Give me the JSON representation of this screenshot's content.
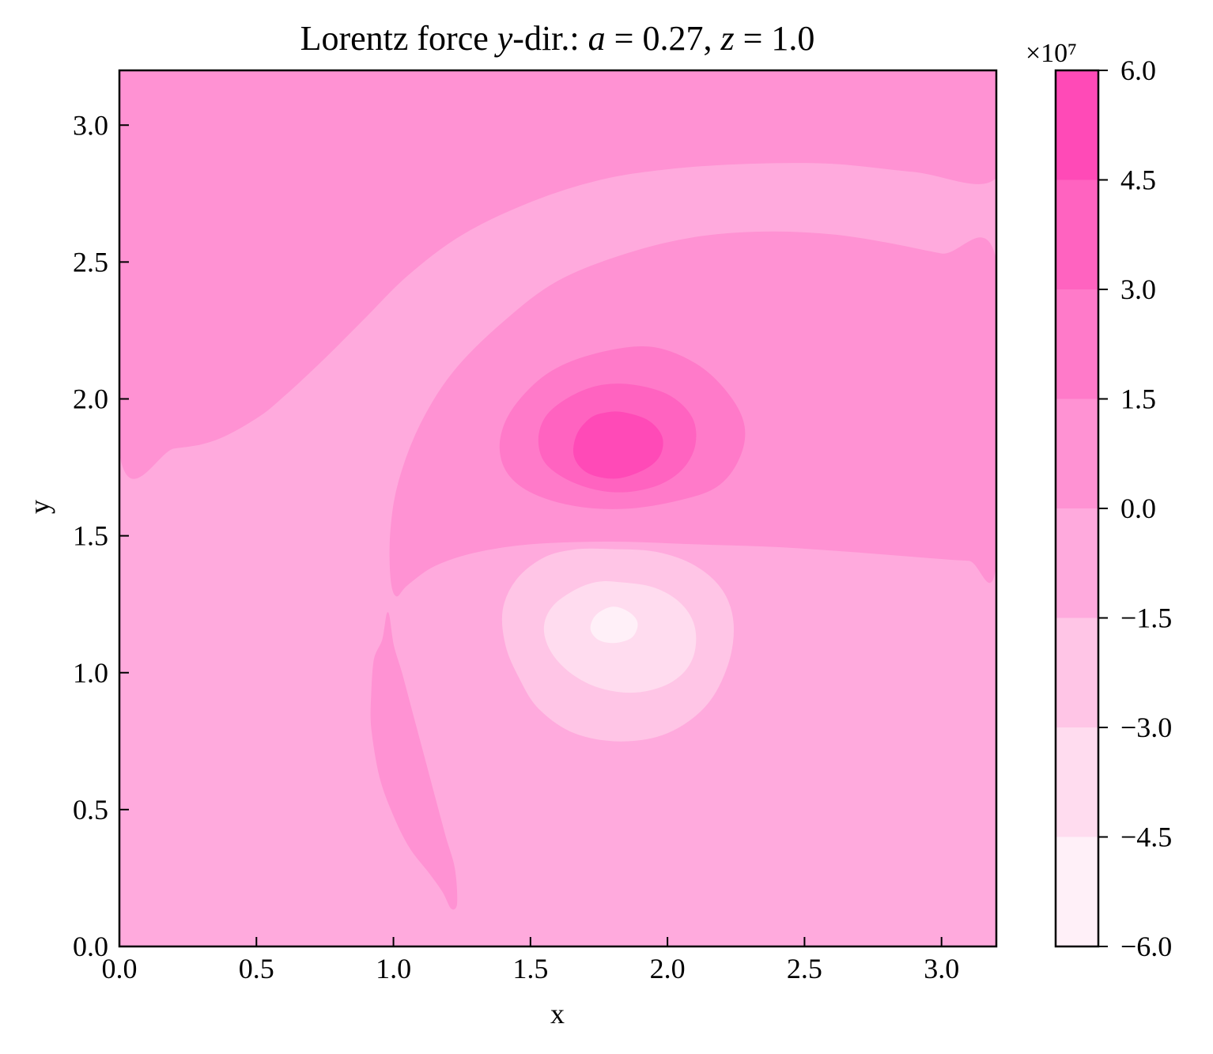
{
  "chart_data": {
    "type": "heatmap",
    "subtype": "filled-contour",
    "title_parts": [
      {
        "text": "Lorentz force ",
        "italic": false
      },
      {
        "text": "y",
        "italic": true
      },
      {
        "text": "-dir.: ",
        "italic": false
      },
      {
        "text": "a",
        "italic": true
      },
      {
        "text": " = 0.27, ",
        "italic": false
      },
      {
        "text": "z",
        "italic": true
      },
      {
        "text": " = 1.0",
        "italic": false
      }
    ],
    "xlabel": "x",
    "ylabel": "y",
    "xlim": [
      0.0,
      3.2
    ],
    "ylim": [
      0.0,
      3.2
    ],
    "xticks": [
      0.0,
      0.5,
      1.0,
      1.5,
      2.0,
      2.5,
      3.0
    ],
    "xtick_labels": [
      "0.0",
      "0.5",
      "1.0",
      "1.5",
      "2.0",
      "2.5",
      "3.0"
    ],
    "yticks": [
      0.0,
      0.5,
      1.0,
      1.5,
      2.0,
      2.5,
      3.0
    ],
    "ytick_labels": [
      "0.0",
      "0.5",
      "1.0",
      "1.5",
      "2.0",
      "2.5",
      "3.0"
    ],
    "colorbar": {
      "offset_label": "×10⁷",
      "scale": 10000000,
      "levels": [
        -6.0,
        -4.5,
        -3.0,
        -1.5,
        0.0,
        1.5,
        3.0,
        4.5,
        6.0
      ],
      "tick_labels": [
        "−6.0",
        "−4.5",
        "−3.0",
        "−1.5",
        "0.0",
        "1.5",
        "3.0",
        "4.5",
        "6.0"
      ],
      "colors": [
        "#fff0f8",
        "#ffdcef",
        "#ffc5e6",
        "#ffaadd",
        "#ff92d3",
        "#ff7ac9",
        "#ff63c0",
        "#ff4ab7"
      ]
    },
    "regions": [
      {
        "name": "background",
        "range": [
          -1.5,
          0.0
        ],
        "path": [
          [
            0.0,
            3.2
          ],
          [
            3.2,
            3.2
          ],
          [
            3.2,
            0.0
          ],
          [
            0.0,
            0.0
          ]
        ]
      },
      {
        "name": "upper-left-region",
        "range": [
          0.0,
          1.5
        ],
        "path": [
          [
            0.0,
            3.2
          ],
          [
            3.2,
            3.2
          ],
          [
            3.2,
            2.81
          ],
          [
            2.9,
            2.83
          ],
          [
            2.6,
            2.86
          ],
          [
            2.3,
            2.86
          ],
          [
            2.0,
            2.84
          ],
          [
            1.75,
            2.8
          ],
          [
            1.5,
            2.72
          ],
          [
            1.25,
            2.6
          ],
          [
            1.05,
            2.45
          ],
          [
            0.9,
            2.3
          ],
          [
            0.75,
            2.15
          ],
          [
            0.6,
            2.01
          ],
          [
            0.5,
            1.93
          ],
          [
            0.35,
            1.85
          ],
          [
            0.2,
            1.82
          ],
          [
            0.0,
            1.81
          ]
        ]
      },
      {
        "name": "central-region",
        "range": [
          0.0,
          1.5
        ],
        "path": [
          [
            3.2,
            2.5
          ],
          [
            3.0,
            2.53
          ],
          [
            2.8,
            2.57
          ],
          [
            2.6,
            2.6
          ],
          [
            2.35,
            2.61
          ],
          [
            2.1,
            2.59
          ],
          [
            1.85,
            2.53
          ],
          [
            1.6,
            2.43
          ],
          [
            1.4,
            2.28
          ],
          [
            1.22,
            2.1
          ],
          [
            1.1,
            1.91
          ],
          [
            1.02,
            1.7
          ],
          [
            0.99,
            1.52
          ],
          [
            0.99,
            1.35
          ],
          [
            1.01,
            1.28
          ],
          [
            1.05,
            1.32
          ],
          [
            1.15,
            1.39
          ],
          [
            1.3,
            1.44
          ],
          [
            1.5,
            1.47
          ],
          [
            1.8,
            1.48
          ],
          [
            2.1,
            1.47
          ],
          [
            2.4,
            1.46
          ],
          [
            2.7,
            1.44
          ],
          [
            2.95,
            1.42
          ],
          [
            3.1,
            1.41
          ],
          [
            3.2,
            1.41
          ]
        ]
      },
      {
        "name": "lower-sliver",
        "range": [
          0.0,
          1.5
        ],
        "path": [
          [
            0.98,
            1.22
          ],
          [
            0.96,
            1.12
          ],
          [
            0.93,
            1.05
          ],
          [
            0.92,
            0.92
          ],
          [
            0.92,
            0.8
          ],
          [
            0.95,
            0.62
          ],
          [
            1.0,
            0.48
          ],
          [
            1.06,
            0.36
          ],
          [
            1.13,
            0.27
          ],
          [
            1.18,
            0.2
          ],
          [
            1.21,
            0.14
          ],
          [
            1.23,
            0.15
          ],
          [
            1.23,
            0.22
          ],
          [
            1.22,
            0.3
          ],
          [
            1.19,
            0.4
          ],
          [
            1.15,
            0.55
          ],
          [
            1.11,
            0.7
          ],
          [
            1.07,
            0.85
          ],
          [
            1.03,
            1.0
          ],
          [
            1.0,
            1.1
          ]
        ]
      },
      {
        "name": "positive-lobe-outer",
        "range": [
          1.5,
          3.0
        ],
        "path": [
          [
            1.93,
            2.19
          ],
          [
            2.1,
            2.13
          ],
          [
            2.22,
            2.02
          ],
          [
            2.28,
            1.9
          ],
          [
            2.26,
            1.78
          ],
          [
            2.18,
            1.68
          ],
          [
            2.04,
            1.63
          ],
          [
            1.85,
            1.6
          ],
          [
            1.66,
            1.61
          ],
          [
            1.5,
            1.66
          ],
          [
            1.41,
            1.74
          ],
          [
            1.39,
            1.85
          ],
          [
            1.44,
            1.97
          ],
          [
            1.56,
            2.09
          ],
          [
            1.72,
            2.16
          ]
        ]
      },
      {
        "name": "positive-lobe-middle",
        "range": [
          3.0,
          4.5
        ],
        "path": [
          [
            1.88,
            2.05
          ],
          [
            2.01,
            2.01
          ],
          [
            2.09,
            1.93
          ],
          [
            2.1,
            1.83
          ],
          [
            2.05,
            1.74
          ],
          [
            1.95,
            1.68
          ],
          [
            1.81,
            1.66
          ],
          [
            1.67,
            1.69
          ],
          [
            1.56,
            1.76
          ],
          [
            1.53,
            1.85
          ],
          [
            1.56,
            1.94
          ],
          [
            1.65,
            2.01
          ],
          [
            1.76,
            2.05
          ]
        ]
      },
      {
        "name": "positive-lobe-core",
        "range": [
          4.5,
          6.0
        ],
        "path": [
          [
            1.84,
            1.95
          ],
          [
            1.93,
            1.92
          ],
          [
            1.98,
            1.86
          ],
          [
            1.97,
            1.79
          ],
          [
            1.91,
            1.74
          ],
          [
            1.81,
            1.71
          ],
          [
            1.71,
            1.73
          ],
          [
            1.66,
            1.79
          ],
          [
            1.67,
            1.87
          ],
          [
            1.72,
            1.93
          ],
          [
            1.78,
            1.95
          ]
        ]
      },
      {
        "name": "negative-lobe-outer",
        "range": [
          -3.0,
          -1.5
        ],
        "path": [
          [
            1.8,
            1.45
          ],
          [
            1.96,
            1.44
          ],
          [
            2.1,
            1.39
          ],
          [
            2.2,
            1.3
          ],
          [
            2.24,
            1.18
          ],
          [
            2.22,
            1.03
          ],
          [
            2.14,
            0.88
          ],
          [
            2.0,
            0.78
          ],
          [
            1.83,
            0.75
          ],
          [
            1.66,
            0.78
          ],
          [
            1.53,
            0.87
          ],
          [
            1.46,
            0.98
          ],
          [
            1.41,
            1.1
          ],
          [
            1.4,
            1.23
          ],
          [
            1.45,
            1.34
          ],
          [
            1.55,
            1.42
          ],
          [
            1.67,
            1.45
          ]
        ]
      },
      {
        "name": "negative-lobe-middle",
        "range": [
          -4.5,
          -3.0
        ],
        "path": [
          [
            1.82,
            1.33
          ],
          [
            1.95,
            1.31
          ],
          [
            2.05,
            1.25
          ],
          [
            2.1,
            1.16
          ],
          [
            2.09,
            1.05
          ],
          [
            2.02,
            0.97
          ],
          [
            1.9,
            0.93
          ],
          [
            1.77,
            0.94
          ],
          [
            1.66,
            0.99
          ],
          [
            1.58,
            1.07
          ],
          [
            1.55,
            1.16
          ],
          [
            1.58,
            1.24
          ],
          [
            1.66,
            1.3
          ],
          [
            1.74,
            1.33
          ]
        ]
      },
      {
        "name": "negative-lobe-core",
        "range": [
          -6.0,
          -4.5
        ],
        "path": [
          [
            1.8,
            1.24
          ],
          [
            1.86,
            1.22
          ],
          [
            1.89,
            1.18
          ],
          [
            1.87,
            1.13
          ],
          [
            1.81,
            1.11
          ],
          [
            1.75,
            1.12
          ],
          [
            1.72,
            1.16
          ],
          [
            1.74,
            1.21
          ]
        ]
      }
    ]
  }
}
